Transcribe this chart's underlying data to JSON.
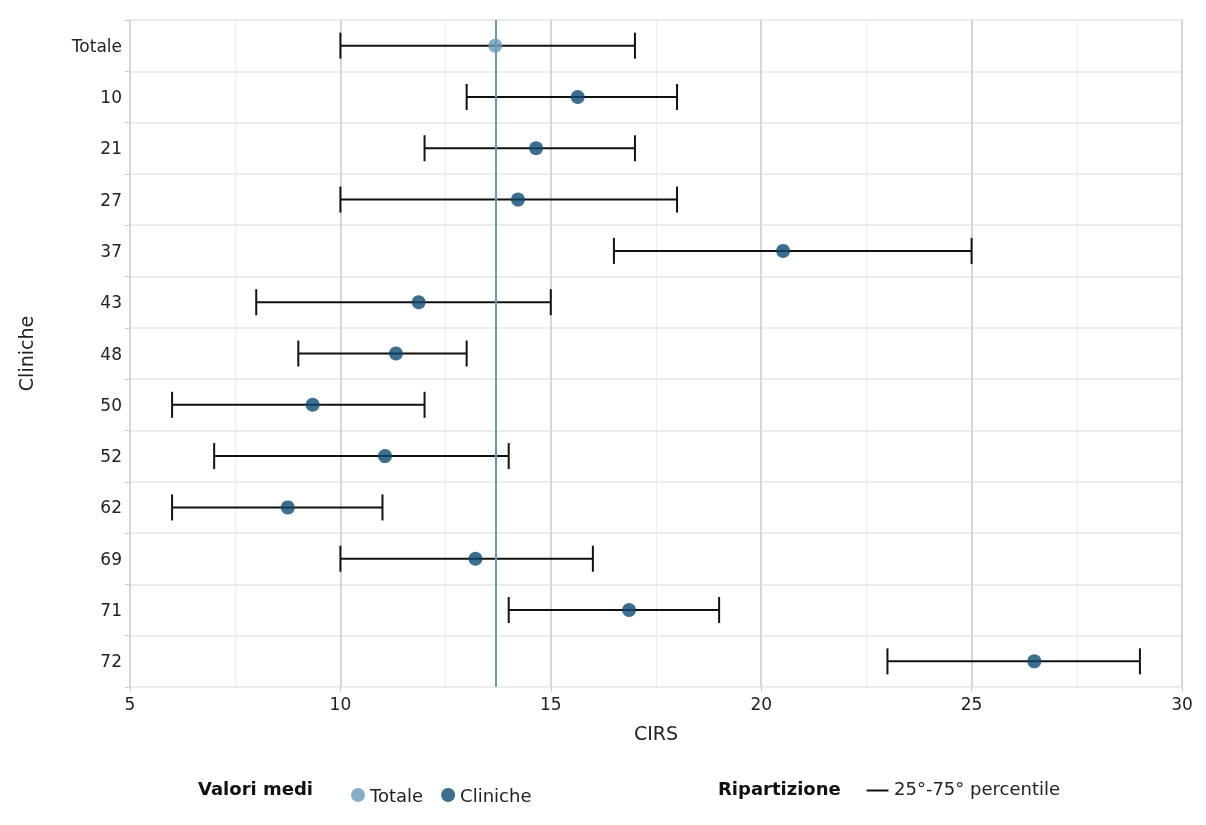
{
  "chart_data": {
    "type": "scatter",
    "orientation": "horizontal",
    "xlabel": "CIRS",
    "ylabel": "Cliniche",
    "legend_title": "Valori medi",
    "legend": "bottom",
    "grid": true,
    "marker": "circle",
    "categories": [
      "Totale",
      "10",
      "21",
      "27",
      "37",
      "43",
      "48",
      "50",
      "52",
      "62",
      "69",
      "71",
      "72"
    ],
    "xlim": [
      5,
      30
    ],
    "xticks": [
      5,
      10,
      15,
      20,
      25,
      30
    ],
    "series": [
      {
        "name": "Totale",
        "color": "#6a9ab5",
        "values": [
          13.68,
          null,
          null,
          null,
          null,
          null,
          null,
          null,
          null,
          null,
          null,
          null,
          null
        ],
        "errors": [
          [
            10,
            17
          ],
          null,
          null,
          null,
          null,
          null,
          null,
          null,
          null,
          null,
          null,
          null,
          null
        ]
      },
      {
        "name": "Cliniche",
        "color": "#0d4a70",
        "values": [
          null,
          15.64,
          14.65,
          14.22,
          20.52,
          11.86,
          11.32,
          9.34,
          11.06,
          8.75,
          13.21,
          16.86,
          26.49
        ],
        "errors": [
          null,
          [
            13,
            18
          ],
          [
            12,
            17
          ],
          [
            10,
            18
          ],
          [
            16.5,
            25
          ],
          [
            8,
            15
          ],
          [
            9,
            13
          ],
          [
            6,
            12
          ],
          [
            7,
            14
          ],
          [
            6,
            11
          ],
          [
            10,
            16
          ],
          [
            14,
            19
          ],
          [
            23,
            29
          ]
        ]
      }
    ],
    "ref_lines": [
      {
        "axis": "x",
        "value": 13.68,
        "color": "#6a9ab5"
      }
    ],
    "annotations": [
      "Ripartizione",
      "25°-75° percentile"
    ]
  }
}
